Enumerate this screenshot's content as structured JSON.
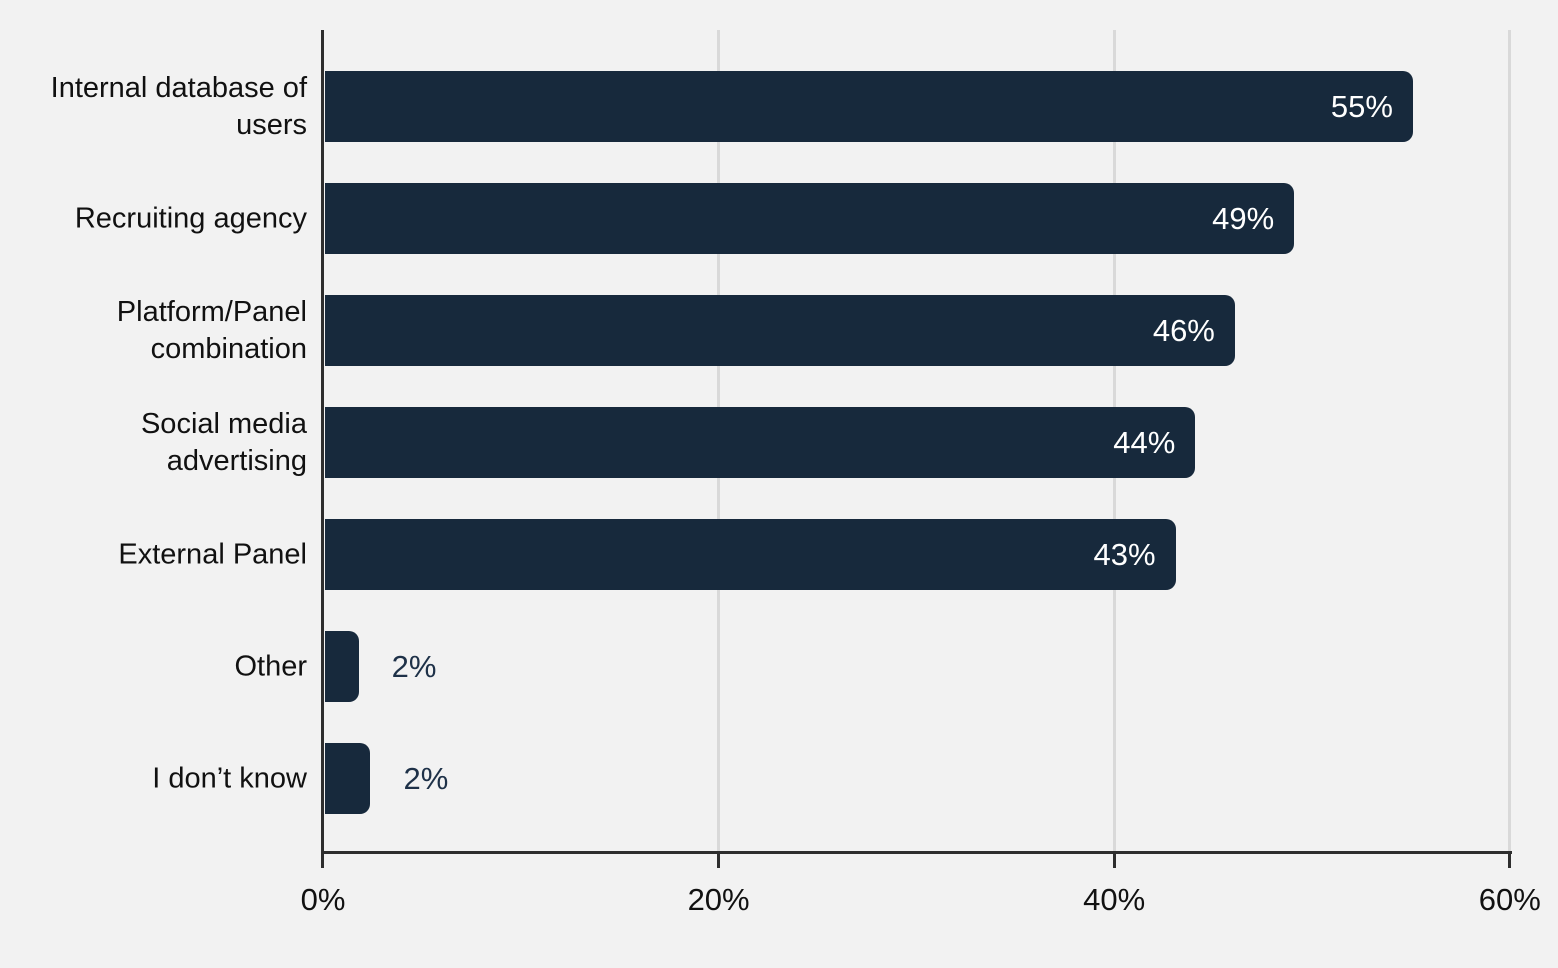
{
  "chart_data": {
    "type": "bar",
    "orientation": "horizontal",
    "title": "",
    "categories": [
      "Internal database of users",
      "Recruiting agency",
      "Platform/Panel combination",
      "Social media advertising",
      "External Panel",
      "Other",
      "I don’t know"
    ],
    "category_lines": [
      [
        "Internal database of",
        "users"
      ],
      [
        "Recruiting agency"
      ],
      [
        "Platform/Panel",
        "combination"
      ],
      [
        "Social media",
        "advertising"
      ],
      [
        "External Panel"
      ],
      [
        "Other"
      ],
      [
        "I don’t know"
      ]
    ],
    "values": [
      55,
      49,
      46,
      44,
      43,
      2,
      2
    ],
    "value_labels": [
      "55%",
      "49%",
      "46%",
      "44%",
      "43%",
      "2%",
      "2%"
    ],
    "bar_lengths_pct": [
      55,
      49,
      46,
      44,
      43,
      1.7,
      2.3
    ],
    "x_ticks": [
      {
        "value": 0,
        "label": "0%"
      },
      {
        "value": 20,
        "label": "20%"
      },
      {
        "value": 40,
        "label": "40%"
      },
      {
        "value": 60,
        "label": "60%"
      }
    ],
    "xlim": [
      0,
      60
    ],
    "grid": "vertical gridlines at 20%, 40%, 60%",
    "legend": null,
    "colors": {
      "bar": "#17293c",
      "background": "#f2f2f2",
      "gridline": "#d9d9d9",
      "axis": "#2e2e2e",
      "value_label_inside": "#ffffff",
      "value_label_outside": "#1e3148",
      "category_label": "#111111"
    }
  }
}
